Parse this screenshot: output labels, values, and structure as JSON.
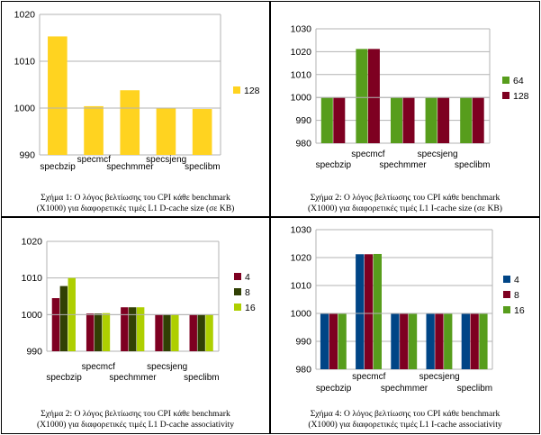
{
  "charts": [
    {
      "id": "p1",
      "caption": [
        "Σχήμα 1: Ο λόγος βελτίωσης του CPI κάθε benchmark",
        "(X1000) για διαφορετικές τιμές L1 D-cache size (σε KB)"
      ],
      "chart_data": {
        "type": "bar",
        "categories": [
          "specbzip",
          "specmcf",
          "spechmmer",
          "specsjeng",
          "speclibm"
        ],
        "series": [
          {
            "name": "128",
            "values": [
              1015.3,
              1000.4,
              1003.8,
              999.9,
              999.8
            ],
            "color": "#ffd320"
          }
        ],
        "ylim": [
          990,
          1020
        ],
        "yticks": [
          990,
          1000,
          1010,
          1020
        ],
        "grid": true,
        "legend": "right"
      }
    },
    {
      "id": "p2",
      "caption": [
        "Σχήμα 2: Ο λόγος βελτίωσης του CPI κάθε benchmark",
        "(X1000) για διαφορετικές τιμές L1 I-cache size (σε KB)"
      ],
      "chart_data": {
        "type": "bar",
        "categories": [
          "specbzip",
          "specmcf",
          "spechmmer",
          "specsjeng",
          "speclibm"
        ],
        "series": [
          {
            "name": "64",
            "values": [
              1000,
              1021.2,
              1000,
              1000,
              1000
            ],
            "color": "#579d1c"
          },
          {
            "name": "128",
            "values": [
              1000,
              1021.2,
              1000,
              1000,
              1000
            ],
            "color": "#7e0021"
          }
        ],
        "ylim": [
          980,
          1030
        ],
        "yticks": [
          980,
          990,
          1000,
          1010,
          1020,
          1030
        ],
        "grid": true,
        "legend": "right"
      }
    },
    {
      "id": "p3",
      "caption": [
        "Σχήμα 2: Ο λόγος βελτίωσης του CPI κάθε benchmark",
        "(X1000) για διαφορετικές τιμές L1 D-cache associativity"
      ],
      "chart_data": {
        "type": "bar",
        "categories": [
          "specbzip",
          "specmcf",
          "spechmmer",
          "specsjeng",
          "speclibm"
        ],
        "series": [
          {
            "name": "4",
            "values": [
              1004.5,
              1000.3,
              1002.0,
              1000.0,
              1000.0
            ],
            "color": "#7e0021"
          },
          {
            "name": "8",
            "values": [
              1007.8,
              1000.3,
              1002.0,
              1000.0,
              1000.0
            ],
            "color": "#314004"
          },
          {
            "name": "16",
            "values": [
              1010.0,
              1000.4,
              1002.0,
              1000.0,
              1000.0
            ],
            "color": "#aecf00"
          }
        ],
        "ylim": [
          990,
          1020
        ],
        "yticks": [
          990,
          1000,
          1010,
          1020
        ],
        "grid": true,
        "legend": "right"
      }
    },
    {
      "id": "p4",
      "caption": [
        "Σχήμα 4: Ο λόγος βελτίωσης του CPI κάθε benchmark",
        "(X1000) για διαφορετικές τιμές L1 I-cache associativity"
      ],
      "chart_data": {
        "type": "bar",
        "categories": [
          "specbzip",
          "specmcf",
          "spechmmer",
          "specsjeng",
          "speclibm"
        ],
        "series": [
          {
            "name": "4",
            "values": [
              1000,
              1021.2,
              1000,
              1000,
              1000
            ],
            "color": "#004586"
          },
          {
            "name": "8",
            "values": [
              1000,
              1021.2,
              1000,
              1000,
              1000
            ],
            "color": "#7e0021"
          },
          {
            "name": "16",
            "values": [
              1000,
              1021.3,
              1000,
              1000,
              1000
            ],
            "color": "#579d1c"
          }
        ],
        "ylim": [
          980,
          1030
        ],
        "yticks": [
          980,
          990,
          1000,
          1010,
          1020,
          1030
        ],
        "grid": true,
        "legend": "right"
      }
    }
  ]
}
